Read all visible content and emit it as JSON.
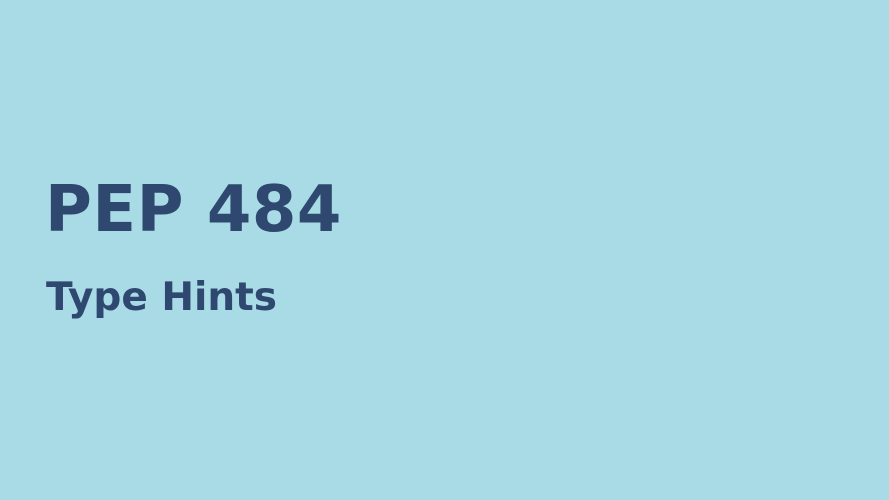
{
  "slide": {
    "title": "PEP 484",
    "subtitle": "Type Hints"
  },
  "colors": {
    "background": "#a8dbe5",
    "text": "#2f4870"
  }
}
